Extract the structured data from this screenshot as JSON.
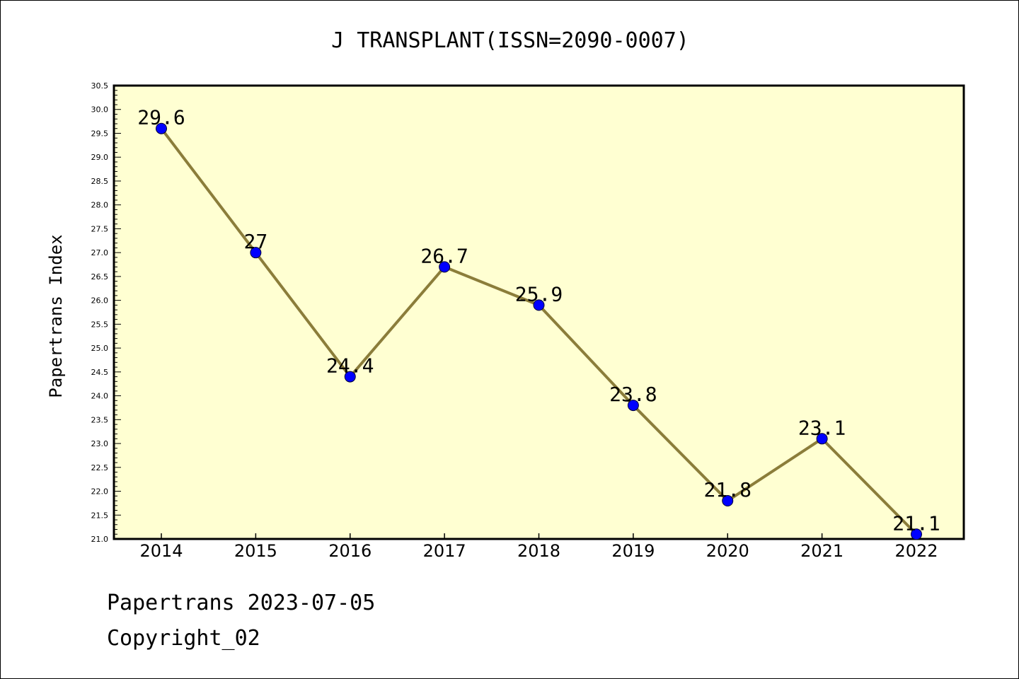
{
  "chart_data": {
    "type": "line",
    "title": "J TRANSPLANT(ISSN=2090-0007)",
    "xlabel": "",
    "ylabel": "Papertrans Index",
    "categories": [
      "2014",
      "2015",
      "2016",
      "2017",
      "2018",
      "2019",
      "2020",
      "2021",
      "2022"
    ],
    "values": [
      29.6,
      27,
      24.4,
      26.7,
      25.9,
      23.8,
      21.8,
      23.1,
      21.1
    ],
    "data_labels": [
      "29.6",
      "27",
      "24.4",
      "26.7",
      "25.9",
      "23.8",
      "21.8",
      "23.1",
      "21.1"
    ],
    "ylim": [
      21.0,
      30.5
    ],
    "y_ticks": [
      "21.0",
      "21.5",
      "22.0",
      "22.5",
      "23.0",
      "23.5",
      "24.0",
      "24.5",
      "25.0",
      "25.5",
      "26.0",
      "26.5",
      "27.0",
      "27.5",
      "28.0",
      "28.5",
      "29.0",
      "29.5",
      "30.0",
      "30.5"
    ],
    "grid": false,
    "legend": "none",
    "colors": {
      "plot_background": "#ffffd2",
      "line": "#8b7d3a",
      "marker": "#0000ff"
    }
  },
  "footer": {
    "line1": "Papertrans 2023-07-05",
    "line2": "Copyright_02"
  }
}
